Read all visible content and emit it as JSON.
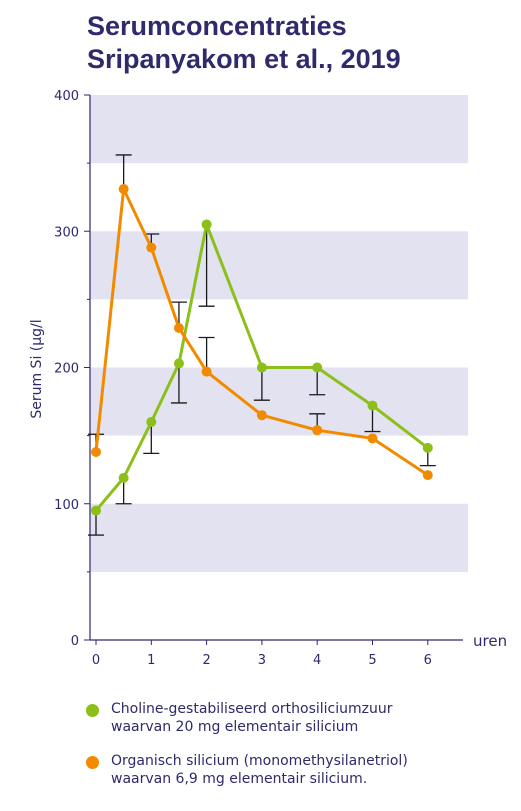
{
  "colors": {
    "navy": "#2e2a6b",
    "band": "#e3e2f0",
    "green": "#8cbf1a",
    "orange": "#f28a00",
    "errorbar": "#1a1a1a"
  },
  "chart_data": {
    "type": "line",
    "title": [
      "Serumconcentraties",
      "Sripanyakom et al., 2019"
    ],
    "ylabel": "Serum Si (µg/l",
    "xlabel": "uren",
    "ylim": [
      0,
      400
    ],
    "xlim": [
      -0.1,
      6.6
    ],
    "yticks": [
      "0",
      "100",
      "200",
      "300",
      "400"
    ],
    "xticks": [
      "0",
      "1",
      "2",
      "3",
      "4",
      "5",
      "6"
    ],
    "grid": "horizontal bands",
    "legend_position": "bottom",
    "series": [
      {
        "name": "Choline-gestabiliseerd orthosiliciumzuur waarvan 20 mg elementair silicium",
        "legend_lines": [
          "Choline-gestabiliseerd orthosiliciumzuur",
          "waarvan 20 mg elementair silicium"
        ],
        "color": "green",
        "x": [
          0,
          0.5,
          1,
          1.5,
          2,
          3,
          4,
          5,
          6
        ],
        "y": [
          95,
          119,
          160,
          203,
          305,
          200,
          200,
          172,
          141
        ],
        "error_low": [
          77,
          100,
          137,
          174,
          245,
          176,
          180,
          153,
          128
        ]
      },
      {
        "name": "Organisch silicium (monomethysilanetriol) waarvan 6,9 mg elementair silicium.",
        "legend_lines": [
          "Organisch silicium (monomethysilanetriol)",
          "waarvan 6,9 mg elementair silicium."
        ],
        "color": "orange",
        "x": [
          0,
          0.5,
          1,
          1.5,
          2,
          3,
          4,
          5,
          6
        ],
        "y": [
          138,
          331,
          288,
          229,
          197,
          165,
          154,
          148,
          121
        ],
        "error_high": [
          151,
          356,
          298,
          248,
          222,
          null,
          166,
          null,
          null
        ]
      }
    ]
  }
}
